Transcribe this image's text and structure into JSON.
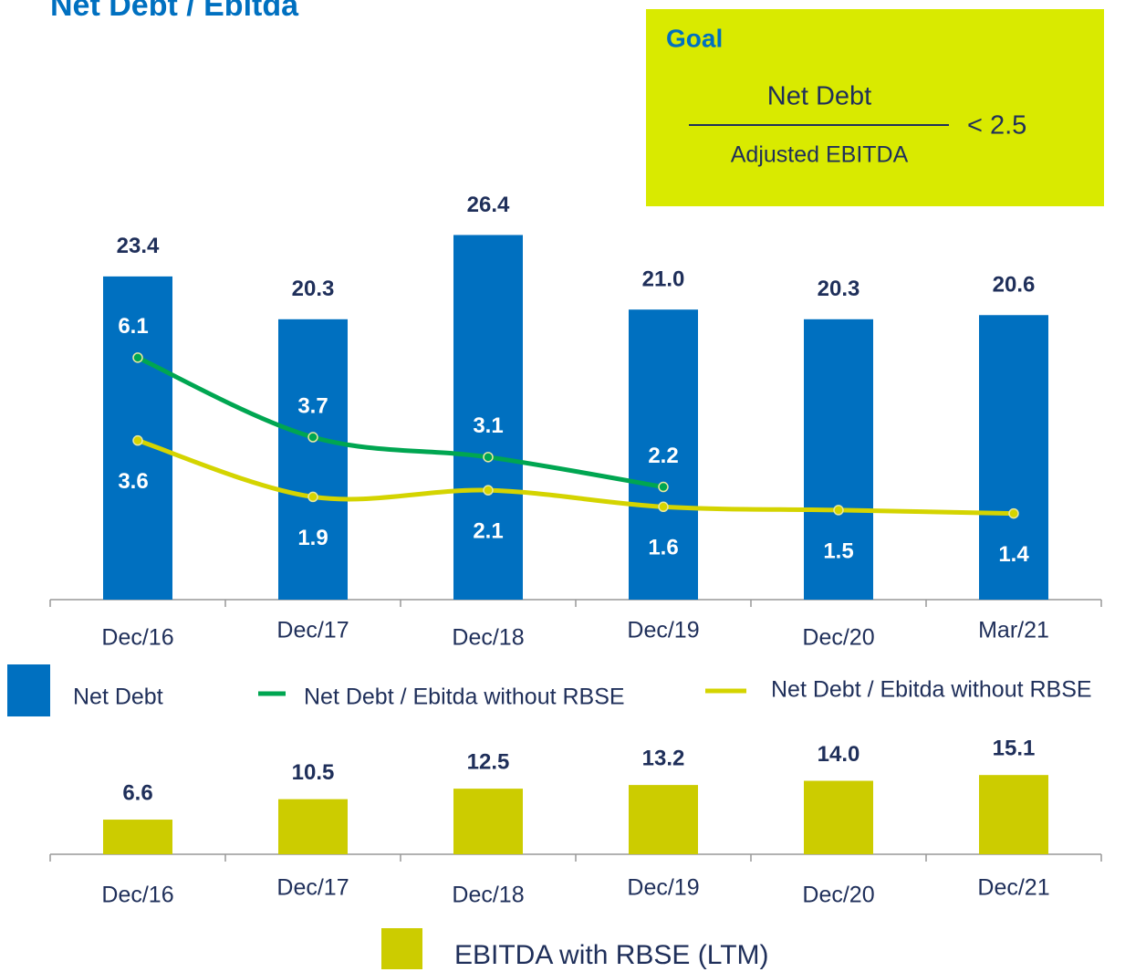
{
  "chart_data": [
    {
      "type": "bar",
      "title": "Net Debt / Ebitda",
      "goal": {
        "title": "Goal",
        "numerator": "Net Debt",
        "denominator": "Adjusted EBITDA",
        "condition": "< 2.5"
      },
      "categories": [
        "Dec/16",
        "Dec/17",
        "Dec/18",
        "Dec/19",
        "Dec/20",
        "Mar/21"
      ],
      "series": [
        {
          "name": "Net Debt",
          "color": "#0070c0",
          "values": [
            23.4,
            20.3,
            26.4,
            21.0,
            20.3,
            20.6
          ],
          "value_labels": [
            "23.4",
            "20.3",
            "26.4",
            "21.0",
            "20.3",
            "20.6"
          ]
        },
        {
          "name": "Net Debt / Ebitda without RBSE",
          "type": "line",
          "axis": "y2",
          "color": "#00a651",
          "values": [
            6.1,
            3.7,
            3.1,
            2.2,
            null,
            null
          ]
        },
        {
          "name": "Net Debt / Ebitda without RBSE",
          "type": "line",
          "axis": "y2",
          "color": "#d4d400",
          "values": [
            3.6,
            1.9,
            2.1,
            1.6,
            1.5,
            1.4
          ]
        }
      ],
      "ylim": [
        0,
        30
      ],
      "y2lim": [
        -1.2,
        11.3
      ]
    },
    {
      "type": "bar",
      "categories": [
        "Dec/16",
        "Dec/17",
        "Dec/18",
        "Dec/19",
        "Dec/20",
        "Dec/21"
      ],
      "series": [
        {
          "name": "EBITDA with RBSE (LTM)",
          "color": "#cccc00",
          "values": [
            6.6,
            10.5,
            12.5,
            13.2,
            14.0,
            15.1
          ],
          "value_labels": [
            "6.6",
            "10.5",
            "12.5",
            "13.2",
            "14.0",
            "15.1"
          ]
        }
      ],
      "ylim": [
        0,
        20
      ]
    }
  ]
}
